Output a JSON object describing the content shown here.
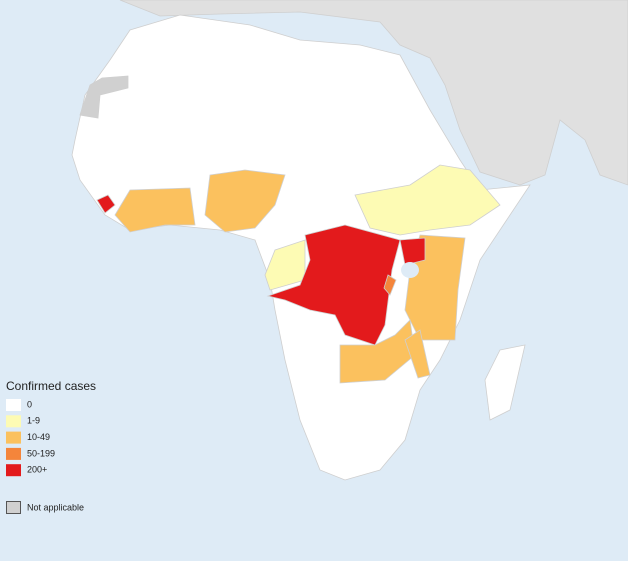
{
  "legend": {
    "title": "Confirmed cases",
    "items": [
      {
        "label": "0",
        "color": "#ffffff"
      },
      {
        "label": "1-9",
        "color": "#fdfbb4"
      },
      {
        "label": "10-49",
        "color": "#fbc15e"
      },
      {
        "label": "50-199",
        "color": "#f4853b"
      },
      {
        "label": "200+",
        "color": "#e31a1c"
      }
    ],
    "not_applicable": {
      "label": "Not applicable",
      "color": "#d0d0d0"
    }
  }
}
